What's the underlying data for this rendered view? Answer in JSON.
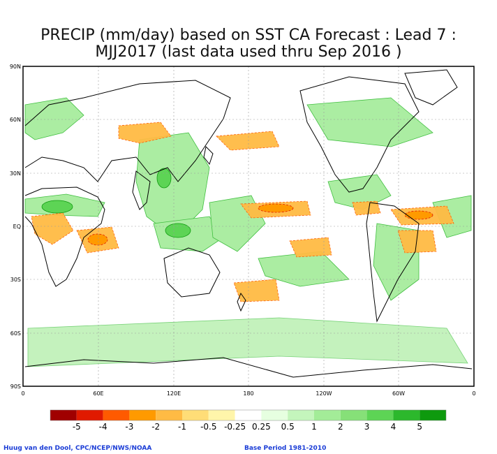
{
  "title": {
    "line1": "PRECIP (mm/day) based on SST CA Forecast : Lead 7 :",
    "line2": "MJJ2017 (last data used thru Sep 2016 )"
  },
  "axes": {
    "lat_labels": [
      "90N",
      "60N",
      "30N",
      "EQ",
      "30S",
      "60S",
      "90S"
    ],
    "lon_labels": [
      "0",
      "60E",
      "120E",
      "180",
      "120W",
      "60W",
      "0"
    ]
  },
  "legend": {
    "labels": [
      "-5",
      "-4",
      "-3",
      "-2",
      "-1",
      "-0.5",
      "-0.25",
      "0.25",
      "0.5",
      "1",
      "2",
      "3",
      "4",
      "5"
    ],
    "colors": [
      "#a00000",
      "#e01a00",
      "#ff5a00",
      "#ff9a00",
      "#ffbb44",
      "#ffdd77",
      "#fff5aa",
      "#ffffff",
      "#e6ffe0",
      "#c4f5bc",
      "#a3ec98",
      "#86e078",
      "#5dd455",
      "#2cb82c",
      "#0e9a0e"
    ]
  },
  "footer": {
    "credit": "Huug van den Dool, CPC/NCEP/NWS/NOAA",
    "base_period": "Base Period 1981-2010"
  },
  "colors": {
    "ocean": "#ffffff",
    "wet": "#a3ec98",
    "dry": "#ffbb44",
    "coast": "#000000",
    "grid": "#999999",
    "text_blue": "#1a3cd6"
  }
}
